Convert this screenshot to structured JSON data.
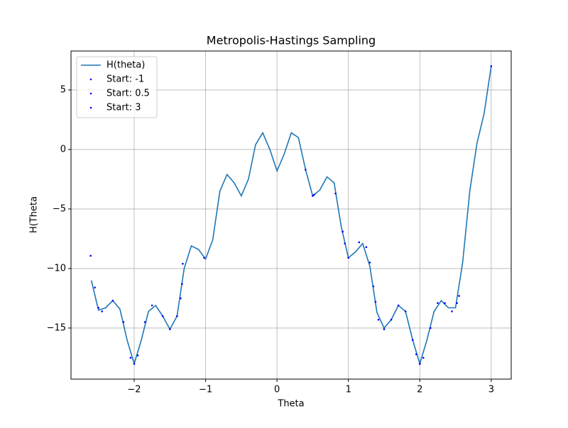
{
  "chart_data": {
    "type": "line_scatter",
    "title": "Metropolis-Hastings Sampling",
    "x_label": "Theta",
    "y_label": "H(Theta",
    "xlim": [
      -2.885,
      3.28
    ],
    "ylim": [
      -19.29,
      8.27
    ],
    "xticks": [
      {
        "value": -2,
        "label": "−2"
      },
      {
        "value": -1,
        "label": "−1"
      },
      0,
      1,
      2,
      3
    ],
    "yticks": [
      {
        "value": -15,
        "label": "−15"
      },
      {
        "value": -10,
        "label": "−10"
      },
      {
        "value": -5,
        "label": "−5"
      },
      0,
      5
    ],
    "grid": true,
    "legend": "upper left",
    "line": {
      "name": "H(theta)",
      "color": "#1f77b4",
      "x": [
        -2.6,
        -2.5,
        -2.4,
        -2.3,
        -2.2,
        -2.1,
        -2.0,
        -1.9,
        -1.8,
        -1.7,
        -1.6,
        -1.5,
        -1.4,
        -1.3,
        -1.2,
        -1.1,
        -1.0,
        -0.9,
        -0.8,
        -0.7,
        -0.6,
        -0.5,
        -0.4,
        -0.3,
        -0.2,
        -0.1,
        0,
        0.1,
        0.2,
        0.3,
        0.4,
        0.5,
        0.6,
        0.7,
        0.8,
        0.9,
        1.0,
        1.1,
        1.2,
        1.3,
        1.4,
        1.5,
        1.6,
        1.7,
        1.8,
        1.9,
        2.0,
        2.1,
        2.2,
        2.3,
        2.4,
        2.5,
        2.6,
        2.7,
        2.8,
        2.9,
        3.0
      ],
      "values": [
        -11,
        -13.5,
        -13.3,
        -12.7,
        -13.4,
        -16,
        -18,
        -16,
        -13.6,
        -13.1,
        -14,
        -15.1,
        -14,
        -10,
        -8.1,
        -8.4,
        -9.2,
        -7.6,
        -3.5,
        -2.1,
        -2.8,
        -3.9,
        -2.5,
        0.4,
        1.4,
        0,
        -1.8,
        -0.4,
        1.4,
        1.0,
        -1.7,
        -3.9,
        -3.4,
        -2.3,
        -2.8,
        -6.5,
        -9.1,
        -8.6,
        -7.9,
        -9.8,
        -13.7,
        -15.0,
        -14.3,
        -13.1,
        -13.6,
        -16,
        -18,
        -16,
        -13.6,
        -12.7,
        -13.3,
        -13.3,
        -9.5,
        -3.5,
        0.5,
        3,
        7
      ]
    },
    "series": [
      {
        "name": "Start: -1",
        "color": "#0000ff",
        "x": [
          -2.61,
          -2.55,
          -2.5,
          -2.45,
          -2.3,
          -2.15,
          -2.05,
          -2.0,
          -1.95,
          -1.85,
          -1.75,
          -1.6,
          -1.5,
          -1.4,
          -1.35,
          -1.33,
          -1.32,
          -1.02
        ],
        "values": [
          -8.93,
          -11.6,
          -13.3,
          -13.6,
          -12.7,
          -14.5,
          -17.5,
          -18,
          -17.3,
          -14.5,
          -13.1,
          -14,
          -15.1,
          -14,
          -12.5,
          -11.3,
          -9.6,
          -9.1
        ]
      },
      {
        "name": "Start: 0.5",
        "color": "#0000ff",
        "x": [
          0.4,
          0.5,
          0.52,
          0.82,
          0.92,
          0.95,
          1.0,
          1.15,
          1.25,
          1.3,
          1.35,
          1.38,
          1.42,
          1.5,
          1.6,
          1.7,
          1.8,
          1.9,
          2.0
        ],
        "values": [
          -1.7,
          -3.9,
          -3.8,
          -3.7,
          -6.9,
          -7.9,
          -9.1,
          -7.8,
          -8.2,
          -9.5,
          -11.5,
          -12.8,
          -14.3,
          -15.1,
          -14.3,
          -13.1,
          -13.6,
          -16,
          -18
        ]
      },
      {
        "name": "Start: 3",
        "color": "#0000ff",
        "x": [
          3.0,
          2.55,
          2.52,
          2.45,
          2.35,
          2.25,
          2.15,
          2.05,
          2.0,
          1.95
        ],
        "values": [
          7,
          -12.3,
          -12.9,
          -13.6,
          -12.9,
          -12.9,
          -15,
          -17.5,
          -18,
          -17.2
        ]
      }
    ]
  }
}
